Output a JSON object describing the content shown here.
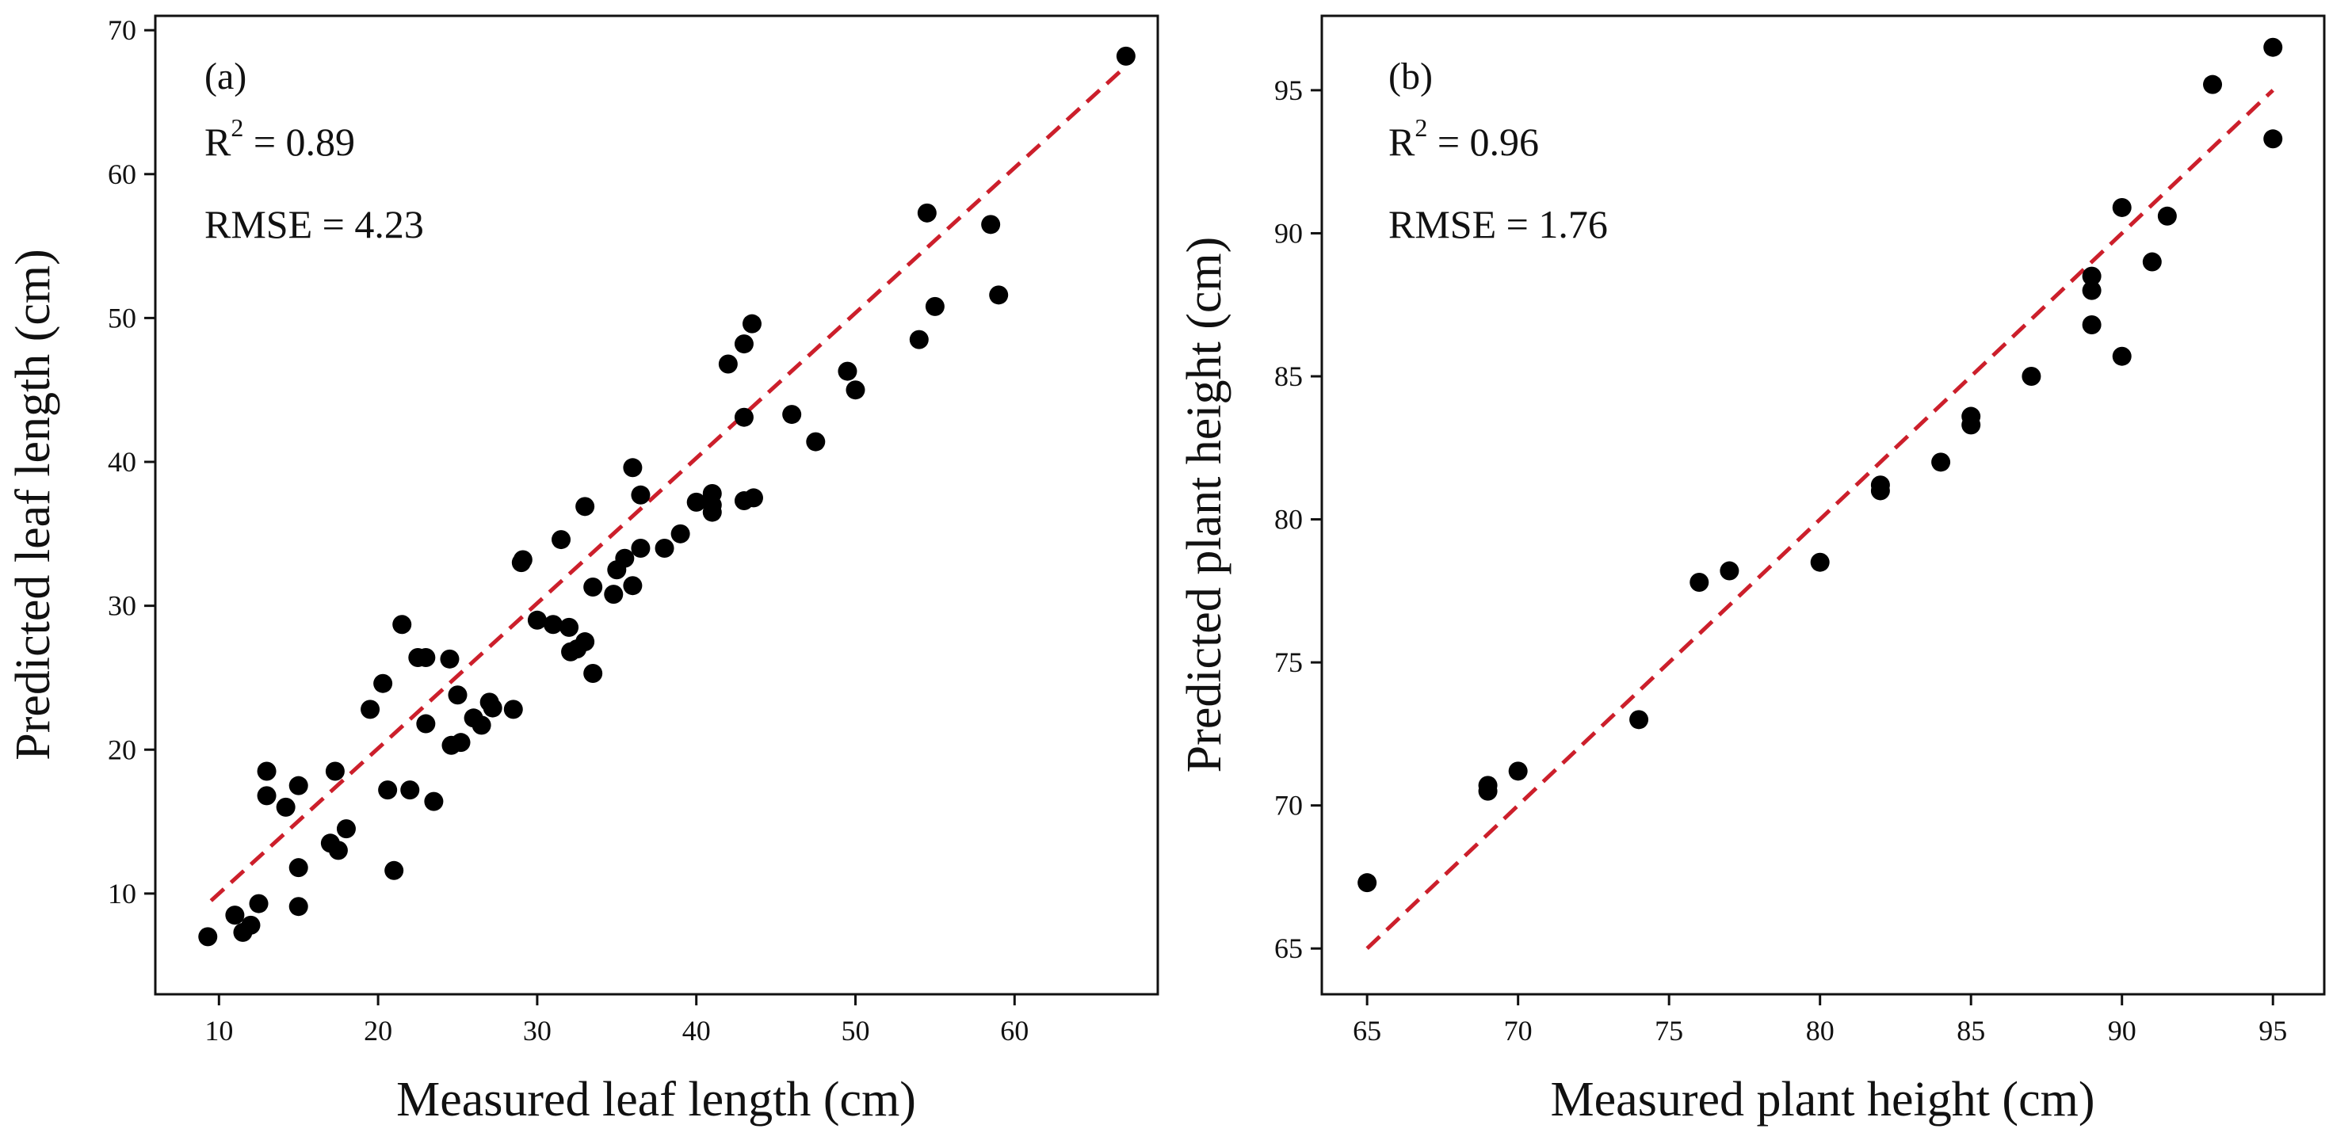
{
  "chart_data": [
    {
      "type": "scatter",
      "panel": "(a)",
      "xlabel": "Measured leaf length (cm)",
      "ylabel": "Predicted leaf length (cm)",
      "xlim": [
        6,
        69
      ],
      "ylim": [
        3,
        71
      ],
      "xticks": [
        10,
        20,
        30,
        40,
        50,
        60
      ],
      "yticks": [
        10,
        20,
        30,
        40,
        50,
        60,
        70
      ],
      "stats": {
        "r2_label": "R",
        "r2_sup": "2",
        "r2_value": " = 0.89",
        "rmse": "RMSE = 4.23"
      },
      "fit_line": {
        "x": [
          9.5,
          67
        ],
        "y": [
          9.5,
          67.5
        ],
        "color": "#cc1f2b"
      },
      "point_color": "#000000",
      "points": [
        [
          9.3,
          7.0
        ],
        [
          11.0,
          8.5
        ],
        [
          11.5,
          7.3
        ],
        [
          12.0,
          7.8
        ],
        [
          12.5,
          9.3
        ],
        [
          15.0,
          9.1
        ],
        [
          15.0,
          11.8
        ],
        [
          13.0,
          18.5
        ],
        [
          13.0,
          16.8
        ],
        [
          14.2,
          16.0
        ],
        [
          15.0,
          17.5
        ],
        [
          17.0,
          13.5
        ],
        [
          17.3,
          18.5
        ],
        [
          17.5,
          13.0
        ],
        [
          18.0,
          14.5
        ],
        [
          19.5,
          22.8
        ],
        [
          20.3,
          24.6
        ],
        [
          20.6,
          17.2
        ],
        [
          21.0,
          11.6
        ],
        [
          21.5,
          28.7
        ],
        [
          22.0,
          17.2
        ],
        [
          22.5,
          26.4
        ],
        [
          23.0,
          21.8
        ],
        [
          23.0,
          26.4
        ],
        [
          23.5,
          16.4
        ],
        [
          24.5,
          26.3
        ],
        [
          24.6,
          20.3
        ],
        [
          25.0,
          23.8
        ],
        [
          25.2,
          20.5
        ],
        [
          26.0,
          22.2
        ],
        [
          26.5,
          21.7
        ],
        [
          27.0,
          23.3
        ],
        [
          27.2,
          22.9
        ],
        [
          28.5,
          22.8
        ],
        [
          29.0,
          33.0
        ],
        [
          29.1,
          33.2
        ],
        [
          30.0,
          29.0
        ],
        [
          31.0,
          28.7
        ],
        [
          31.5,
          34.6
        ],
        [
          32.0,
          28.5
        ],
        [
          32.1,
          26.8
        ],
        [
          32.5,
          27.0
        ],
        [
          33.0,
          27.5
        ],
        [
          33.0,
          36.9
        ],
        [
          33.5,
          25.3
        ],
        [
          33.5,
          31.3
        ],
        [
          34.8,
          30.8
        ],
        [
          35.0,
          32.5
        ],
        [
          35.5,
          33.3
        ],
        [
          36.0,
          31.4
        ],
        [
          36.0,
          39.6
        ],
        [
          36.5,
          37.7
        ],
        [
          36.5,
          34.0
        ],
        [
          38.0,
          34.0
        ],
        [
          39.0,
          35.0
        ],
        [
          40.0,
          37.2
        ],
        [
          41.0,
          36.5
        ],
        [
          41.0,
          37.0
        ],
        [
          41.0,
          37.8
        ],
        [
          42.0,
          46.8
        ],
        [
          43.0,
          48.2
        ],
        [
          43.0,
          43.1
        ],
        [
          43.0,
          37.3
        ],
        [
          43.6,
          37.5
        ],
        [
          43.5,
          49.6
        ],
        [
          46.0,
          43.3
        ],
        [
          47.5,
          41.4
        ],
        [
          49.5,
          46.3
        ],
        [
          50.0,
          45.0
        ],
        [
          54.0,
          48.5
        ],
        [
          54.5,
          57.3
        ],
        [
          55.0,
          50.8
        ],
        [
          58.5,
          56.5
        ],
        [
          59.0,
          51.6
        ],
        [
          67.0,
          68.2
        ]
      ]
    },
    {
      "type": "scatter",
      "panel": "(b)",
      "xlabel": "Measured plant height (cm)",
      "ylabel": "Predicted plant height (cm)",
      "xlim": [
        63.5,
        96.7
      ],
      "ylim": [
        63.4,
        97.6
      ],
      "xticks": [
        65,
        70,
        75,
        80,
        85,
        90,
        95
      ],
      "yticks": [
        65,
        70,
        75,
        80,
        85,
        90,
        95
      ],
      "stats": {
        "r2_label": "R",
        "r2_sup": "2",
        "r2_value": " = 0.96",
        "rmse": "RMSE = 1.76"
      },
      "fit_line": {
        "x": [
          65,
          95
        ],
        "y": [
          65,
          95
        ],
        "color": "#cc1f2b"
      },
      "point_color": "#000000",
      "points": [
        [
          65,
          67.3
        ],
        [
          69,
          70.5
        ],
        [
          69,
          70.7
        ],
        [
          70,
          71.2
        ],
        [
          74,
          73.0
        ],
        [
          76,
          77.8
        ],
        [
          77,
          78.2
        ],
        [
          80,
          78.5
        ],
        [
          82,
          81.0
        ],
        [
          82,
          81.2
        ],
        [
          84,
          82.0
        ],
        [
          85,
          83.3
        ],
        [
          85,
          83.6
        ],
        [
          87,
          85.0
        ],
        [
          89,
          86.8
        ],
        [
          89,
          88.0
        ],
        [
          89,
          88.5
        ],
        [
          90,
          85.7
        ],
        [
          90,
          90.9
        ],
        [
          91,
          89.0
        ],
        [
          91.5,
          90.6
        ],
        [
          93,
          95.2
        ],
        [
          95,
          96.5
        ],
        [
          95,
          93.3
        ]
      ]
    }
  ]
}
